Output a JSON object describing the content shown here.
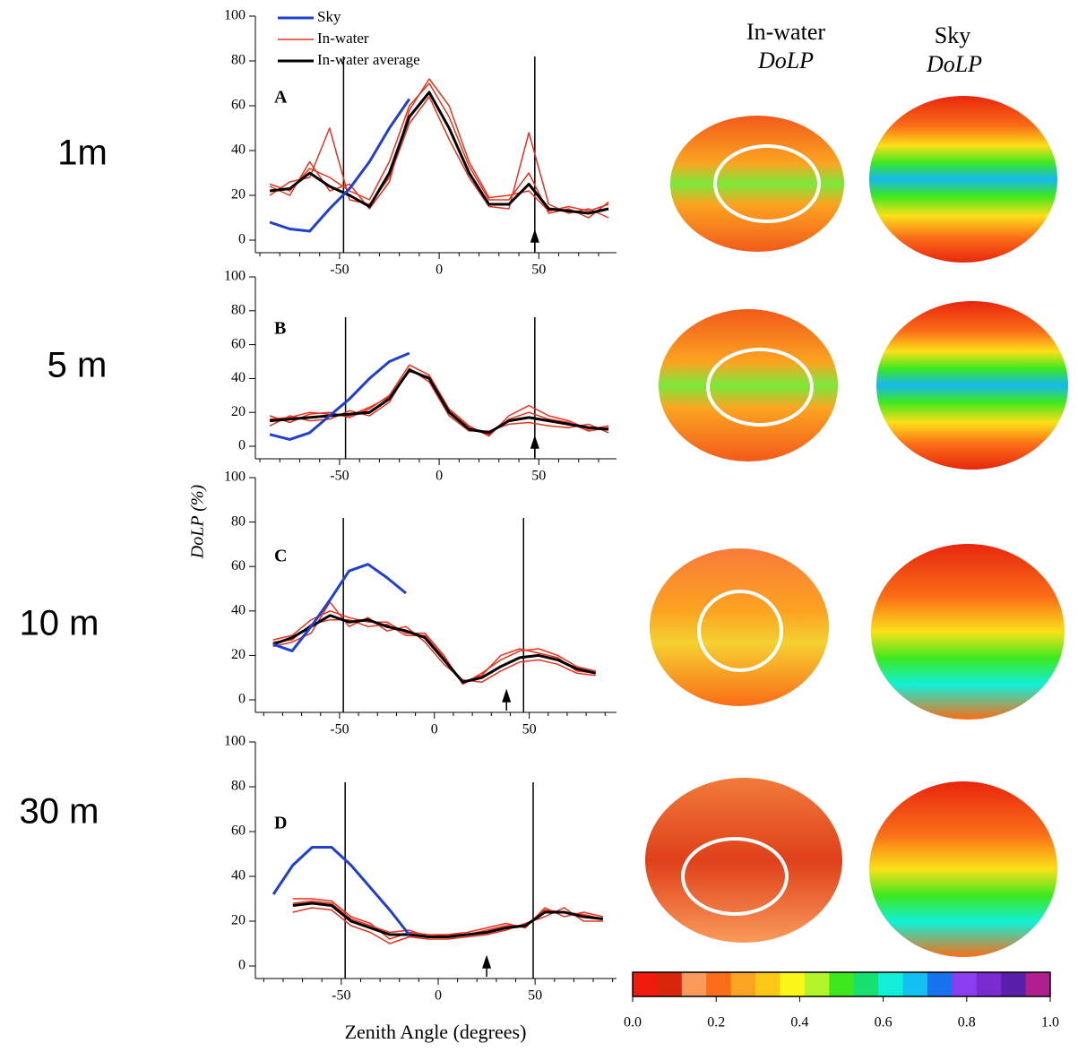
{
  "chart_data": [
    {
      "type": "line",
      "annotation": "A",
      "xlim": [
        -90,
        89
      ],
      "xticks": [
        -50,
        0,
        50
      ],
      "ylim": [
        0,
        100
      ],
      "yticks": [
        0,
        20,
        40,
        60,
        80,
        100
      ],
      "vlines": [
        -48,
        48
      ],
      "arrow_x": 48,
      "legend": "upper left",
      "x": [
        -85,
        -75,
        -65,
        -55,
        -45,
        -35,
        -25,
        -15,
        -5,
        5,
        15,
        25,
        35,
        45,
        55,
        65,
        75,
        85
      ],
      "series": [
        {
          "name": "Sky",
          "color": "#1f3fcf",
          "values": [
            8,
            5,
            4,
            14,
            23,
            35,
            50,
            63,
            null,
            null,
            null,
            null,
            null,
            null,
            null,
            null,
            null,
            null
          ]
        },
        {
          "name": "In-water",
          "color": "#e8321e",
          "values": [
            [
              25,
              22,
              32,
              28,
              22,
              18,
              35,
              60,
              70,
              55,
              33,
              18,
              18,
              30,
              12,
              14,
              10,
              17
            ],
            [
              20,
              26,
              28,
              50,
              18,
              16,
              28,
              52,
              64,
              45,
              28,
              15,
              14,
              48,
              16,
              12,
              14,
              10
            ],
            [
              24,
              20,
              35,
              22,
              25,
              14,
              26,
              58,
              72,
              60,
              35,
              19,
              20,
              22,
              13,
              15,
              13,
              16
            ]
          ]
        },
        {
          "name": "In-water average",
          "color": "#000000",
          "values": [
            22,
            23,
            30,
            24,
            20,
            15,
            30,
            55,
            66,
            50,
            30,
            16,
            16,
            25,
            14,
            13,
            12,
            14
          ]
        }
      ]
    },
    {
      "type": "line",
      "annotation": "B",
      "xlim": [
        -90,
        89
      ],
      "xticks": [
        -50,
        0,
        50
      ],
      "ylim": [
        0,
        100
      ],
      "yticks": [
        0,
        20,
        40,
        60,
        80,
        100
      ],
      "vlines": [
        -47,
        48
      ],
      "arrow_x": 48,
      "x": [
        -85,
        -75,
        -65,
        -55,
        -45,
        -35,
        -25,
        -15,
        -5,
        5,
        15,
        25,
        35,
        45,
        55,
        65,
        75,
        85
      ],
      "series": [
        {
          "name": "Sky",
          "color": "#1f3fcf",
          "values": [
            7,
            4,
            8,
            18,
            28,
            40,
            50,
            55,
            null,
            null,
            null,
            null,
            null,
            null,
            null,
            null,
            null,
            null
          ]
        },
        {
          "name": "In-water",
          "color": "#e8321e",
          "values": [
            [
              18,
              14,
              19,
              20,
              17,
              22,
              30,
              48,
              42,
              22,
              12,
              6,
              18,
              24,
              18,
              15,
              10,
              12
            ],
            [
              12,
              18,
              15,
              16,
              21,
              18,
              26,
              46,
              38,
              18,
              9,
              9,
              13,
              14,
              12,
              11,
              13,
              8
            ],
            [
              16,
              17,
              20,
              19,
              18,
              23,
              29,
              44,
              41,
              21,
              11,
              7,
              16,
              20,
              16,
              14,
              9,
              11
            ]
          ]
        },
        {
          "name": "In-water average",
          "color": "#000000",
          "values": [
            15,
            16,
            17,
            18,
            19,
            20,
            28,
            45,
            40,
            20,
            10,
            8,
            15,
            17,
            15,
            13,
            11,
            10
          ]
        }
      ]
    },
    {
      "type": "line",
      "annotation": "C",
      "xlim": [
        -92,
        96
      ],
      "xticks": [
        -50,
        0,
        50
      ],
      "ylim": [
        0,
        100
      ],
      "yticks": [
        0,
        20,
        40,
        60,
        80,
        100
      ],
      "vlines": [
        -48,
        47
      ],
      "arrow_x": 38,
      "x": [
        -85,
        -75,
        -65,
        -55,
        -45,
        -35,
        -25,
        -15,
        -5,
        5,
        15,
        25,
        35,
        45,
        55,
        65,
        75,
        85
      ],
      "series": [
        {
          "name": "Sky",
          "color": "#1f3fcf",
          "values": [
            25,
            22,
            33,
            45,
            58,
            61,
            55,
            48,
            null,
            null,
            null,
            null,
            null,
            null,
            null,
            null,
            null,
            null
          ]
        },
        {
          "name": "In-water",
          "color": "#e8321e",
          "values": [
            [
              27,
              29,
              36,
              40,
              37,
              35,
              35,
              30,
              30,
              20,
              7,
              12,
              18,
              22,
              23,
              20,
              15,
              13
            ],
            [
              24,
              26,
              30,
              44,
              33,
              37,
              31,
              33,
              26,
              16,
              9,
              8,
              13,
              17,
              18,
              16,
              12,
              11
            ],
            [
              26,
              27,
              34,
              36,
              36,
              33,
              34,
              29,
              29,
              19,
              8,
              11,
              20,
              23,
              21,
              19,
              13,
              12
            ]
          ]
        },
        {
          "name": "In-water average",
          "color": "#000000",
          "values": [
            25,
            28,
            33,
            38,
            35,
            36,
            33,
            31,
            28,
            18,
            8,
            10,
            15,
            19,
            20,
            18,
            14,
            12
          ]
        }
      ]
    },
    {
      "type": "line",
      "annotation": "D",
      "xlim": [
        -92,
        92
      ],
      "xticks": [
        -50,
        0,
        50
      ],
      "ylim": [
        0,
        100
      ],
      "yticks": [
        0,
        20,
        40,
        60,
        80,
        100
      ],
      "vlines": [
        -48,
        49
      ],
      "arrow_x": 25,
      "x": [
        -85,
        -75,
        -65,
        -55,
        -45,
        -35,
        -25,
        -15,
        -5,
        5,
        15,
        25,
        35,
        45,
        55,
        65,
        75,
        85
      ],
      "series": [
        {
          "name": "Sky",
          "color": "#1f3fcf",
          "values": [
            32,
            45,
            53,
            53,
            45,
            35,
            25,
            14,
            null,
            null,
            null,
            null,
            null,
            null,
            null,
            null,
            null,
            null
          ]
        },
        {
          "name": "In-water",
          "color": "#e8321e",
          "values": [
            [
              null,
              30,
              30,
              29,
              22,
              19,
              12,
              15,
              14,
              14,
              15,
              17,
              19,
              17,
              26,
              22,
              24,
              22
            ],
            [
              null,
              24,
              26,
              25,
              18,
              15,
              10,
              13,
              12,
              12,
              13,
              14,
              16,
              19,
              22,
              26,
              20,
              20
            ],
            [
              null,
              28,
              29,
              28,
              21,
              18,
              15,
              16,
              13,
              14,
              14,
              16,
              18,
              18,
              25,
              24,
              23,
              21
            ]
          ]
        },
        {
          "name": "In-water average",
          "color": "#000000",
          "values": [
            null,
            27,
            28,
            27,
            20,
            17,
            14,
            14,
            13,
            13,
            14,
            15,
            17,
            18,
            24,
            24,
            22,
            21
          ]
        }
      ]
    }
  ],
  "ylabel": "DoLP (%)",
  "xlabel": "Zenith Angle (degrees)",
  "depth_labels": [
    "1m",
    "5 m",
    "10 m",
    "30 m"
  ],
  "image_headers": [
    {
      "title": "In-water",
      "subtitle": "DoLP"
    },
    {
      "title": "Sky",
      "subtitle": "DoLP"
    }
  ],
  "colorbar": {
    "lim": [
      0,
      1
    ],
    "ticks": [
      {
        "value": 0,
        "label": "0.0"
      },
      0.2,
      0.4,
      0.6,
      0.8,
      {
        "value": 1,
        "label": "1.0"
      }
    ],
    "colors": [
      "#f21a0c",
      "#d8260e",
      "#f99a5a",
      "#fb6d18",
      "#fca421",
      "#fcc816",
      "#fbf518",
      "#b2f52a",
      "#3ee81e",
      "#18e070",
      "#10f0d8",
      "#14c0f0",
      "#1672f0",
      "#8a3ef0",
      "#7a2ad0",
      "#5a1fa8",
      "#b01f8e"
    ]
  }
}
